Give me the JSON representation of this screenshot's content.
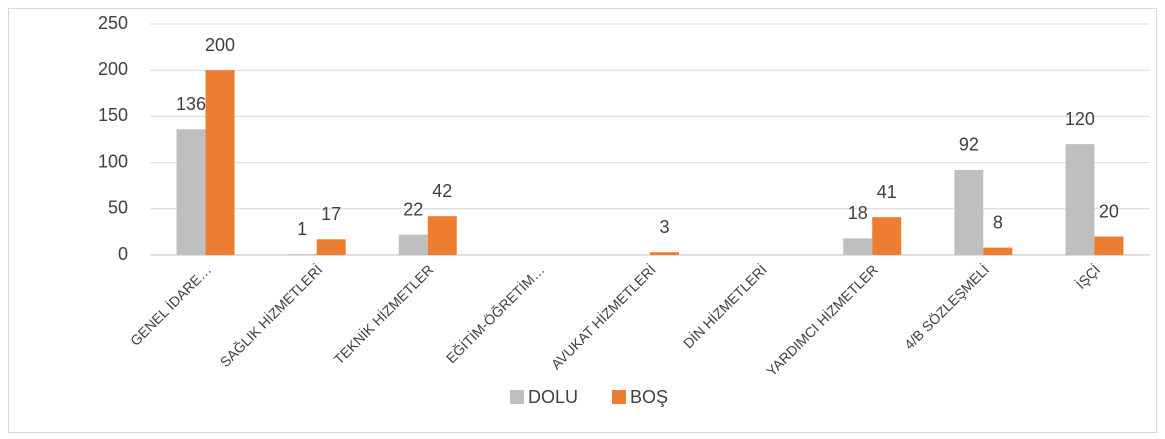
{
  "chart_data": {
    "type": "bar",
    "categories": [
      "GENEL İDARE…",
      "SAĞLIK HİZMETLERİ",
      "TEKNİK HİZMETLER",
      "EĞİTİM-ÖĞRETİM…",
      "AVUKAT HİZMETLERİ",
      "DİN HİZMETLERİ",
      "YARDIMCI HİZMETLER",
      "4/B SÖZLEŞMELİ",
      "İŞÇİ"
    ],
    "series": [
      {
        "name": "DOLU",
        "color": "#bfbfbf",
        "values": [
          136,
          1,
          22,
          null,
          null,
          null,
          18,
          92,
          120
        ]
      },
      {
        "name": "BOŞ",
        "color": "#ed7d31",
        "values": [
          200,
          17,
          42,
          null,
          3,
          null,
          41,
          8,
          20
        ]
      }
    ],
    "ylim": [
      0,
      250
    ],
    "yticks": [
      0,
      50,
      100,
      150,
      200,
      250
    ],
    "grid": true,
    "legend": "bottom"
  }
}
